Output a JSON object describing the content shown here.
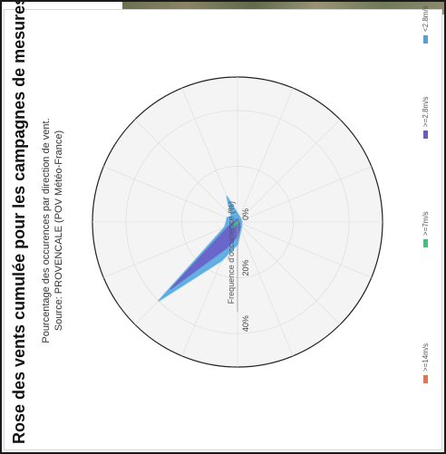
{
  "chart_data": {
    "type": "radar-area",
    "title": "Rose des vents cumulée pour les campagnes de mesures",
    "subtitle_1": "Pourcentage des occurences par direction de vent.",
    "subtitle_2": "Source: PROVENCALE (POV Météo-France)",
    "axis_title": "Frequence d'occurrence (%)",
    "radial_ticks": [
      {
        "value": 0,
        "label": "0%"
      },
      {
        "value": 20,
        "label": "20%"
      },
      {
        "value": 40,
        "label": "40%"
      }
    ],
    "rmax": 52,
    "directions_deg": [
      0,
      22.5,
      45,
      67.5,
      90,
      112.5,
      135,
      157.5,
      180,
      202.5,
      225,
      247.5,
      270,
      292.5,
      315,
      337.5
    ],
    "series": [
      {
        "name": "<2.8m/s",
        "color": "#4aa3df",
        "values": [
          4,
          4,
          3,
          10,
          3,
          2,
          1.5,
          1.5,
          1.5,
          1.5,
          2,
          3,
          8,
          15,
          40,
          5
        ]
      },
      {
        "name": ">=2.8m/s",
        "color": "#6a5bc4",
        "values": [
          1.5,
          1,
          1,
          1,
          1,
          0.5,
          0.5,
          0.5,
          0.5,
          0.5,
          1,
          2,
          5,
          10,
          34,
          3
        ]
      },
      {
        "name": ">=7m/s",
        "color": "#3cc47c",
        "values": [
          0.5,
          0.5,
          0.3,
          0.3,
          0.3,
          0.2,
          0.2,
          0.2,
          0.2,
          0.2,
          0.2,
          0.3,
          0.5,
          1,
          3,
          1
        ]
      },
      {
        "name": ">=14m/s",
        "color": "#e8734a",
        "values": [
          0,
          0,
          0,
          0,
          0,
          0,
          0,
          0,
          0,
          0,
          0,
          0,
          0,
          0,
          0.3,
          0
        ]
      }
    ]
  }
}
